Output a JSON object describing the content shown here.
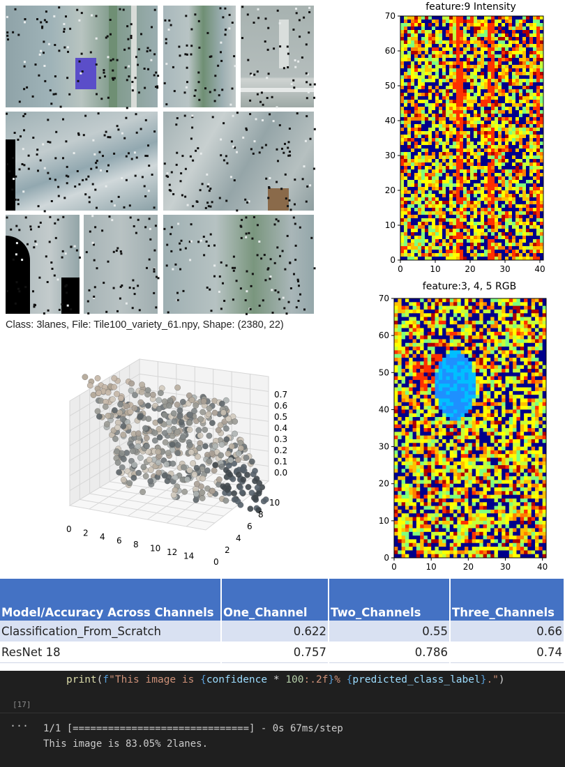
{
  "caption": "Class: 3lanes, File: Tile100_variety_61.npy, Shape: (2380, 22)",
  "heatmap_top": {
    "title": "feature:9 Intensity",
    "y_ticks": [
      "0",
      "10",
      "20",
      "30",
      "40",
      "50",
      "60",
      "70"
    ],
    "x_ticks": [
      "0",
      "10",
      "20",
      "30",
      "40"
    ]
  },
  "heatmap_bottom": {
    "title": "feature:3, 4, 5 RGB",
    "y_ticks": [
      "0",
      "10",
      "20",
      "30",
      "40",
      "50",
      "60",
      "70"
    ],
    "x_ticks": [
      "0",
      "10",
      "20",
      "30",
      "40"
    ]
  },
  "scatter3d": {
    "z_ticks": [
      "0.7",
      "0.6",
      "0.5",
      "0.4",
      "0.3",
      "0.2",
      "0.1",
      "0.0"
    ],
    "x_ticks": [
      "0",
      "2",
      "4",
      "6",
      "8",
      "10",
      "12",
      "14"
    ],
    "y_ticks": [
      "0",
      "2",
      "4",
      "6",
      "8",
      "10"
    ]
  },
  "table": {
    "headers": [
      "Model/Accuracy Across Channels",
      "One_Channel",
      "Two_Channels",
      "Three_Channels"
    ],
    "rows": [
      [
        "Classification_From_Scratch",
        "0.622",
        "0.55",
        "0.66"
      ],
      [
        "ResNet 18",
        "0.757",
        "0.786",
        "0.74"
      ]
    ]
  },
  "notebook": {
    "code_print": "print",
    "code_open": "(",
    "code_fprefix": "f",
    "code_str1": "\"This image is ",
    "code_lb1": "{",
    "code_var1": "confidence",
    "code_mul": " * ",
    "code_num": "100",
    "code_fmt": ":.2f",
    "code_rb1": "}",
    "code_str2": "% ",
    "code_lb2": "{",
    "code_var2": "predicted_class_label",
    "code_rb2": "}",
    "code_str3": ".\"",
    "code_close": ")",
    "exec_count": "[17]",
    "output_dots": "···",
    "output_line1": "1/1 [==============================] - 0s 67ms/step",
    "output_line2": "This image is 83.05% 2lanes."
  }
}
